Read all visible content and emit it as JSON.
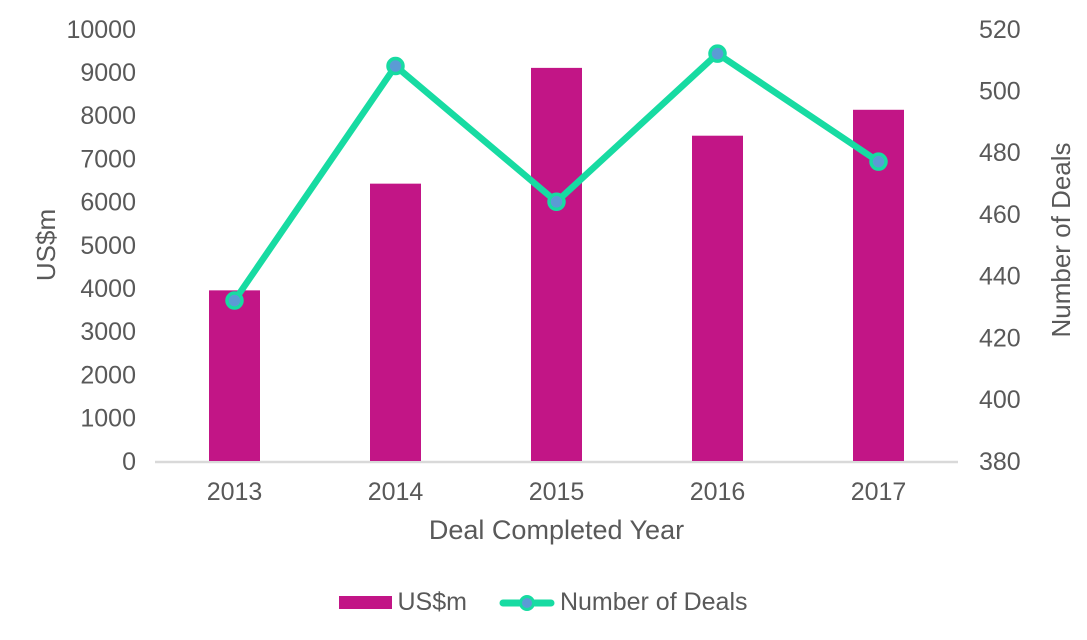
{
  "chart_data": {
    "type": "combo-bar-line",
    "categories": [
      "2013",
      "2014",
      "2015",
      "2016",
      "2017"
    ],
    "series": [
      {
        "name": "US$m",
        "type": "bar",
        "axis": "left",
        "values": [
          3950,
          6420,
          9100,
          7530,
          8130
        ],
        "color": "#C21586"
      },
      {
        "name": "Number of Deals",
        "type": "line",
        "axis": "right",
        "values": [
          432,
          508,
          464,
          512,
          477
        ],
        "color": "#17DBA2",
        "marker_color": "#5B9BD5"
      }
    ],
    "left_axis": {
      "title": "US$m",
      "min": 0,
      "max": 10000,
      "step": 1000
    },
    "right_axis": {
      "title": "Number of Deals",
      "min": 380,
      "max": 520,
      "step": 20
    },
    "x_axis": {
      "title": "Deal Completed Year"
    },
    "legend": {
      "position": "bottom",
      "items": [
        "US$m",
        "Number of Deals"
      ]
    },
    "grid": false,
    "styles": {
      "text_color": "#595959",
      "axis_line_color": "#D9D9D9",
      "background": "#FFFFFF"
    }
  }
}
